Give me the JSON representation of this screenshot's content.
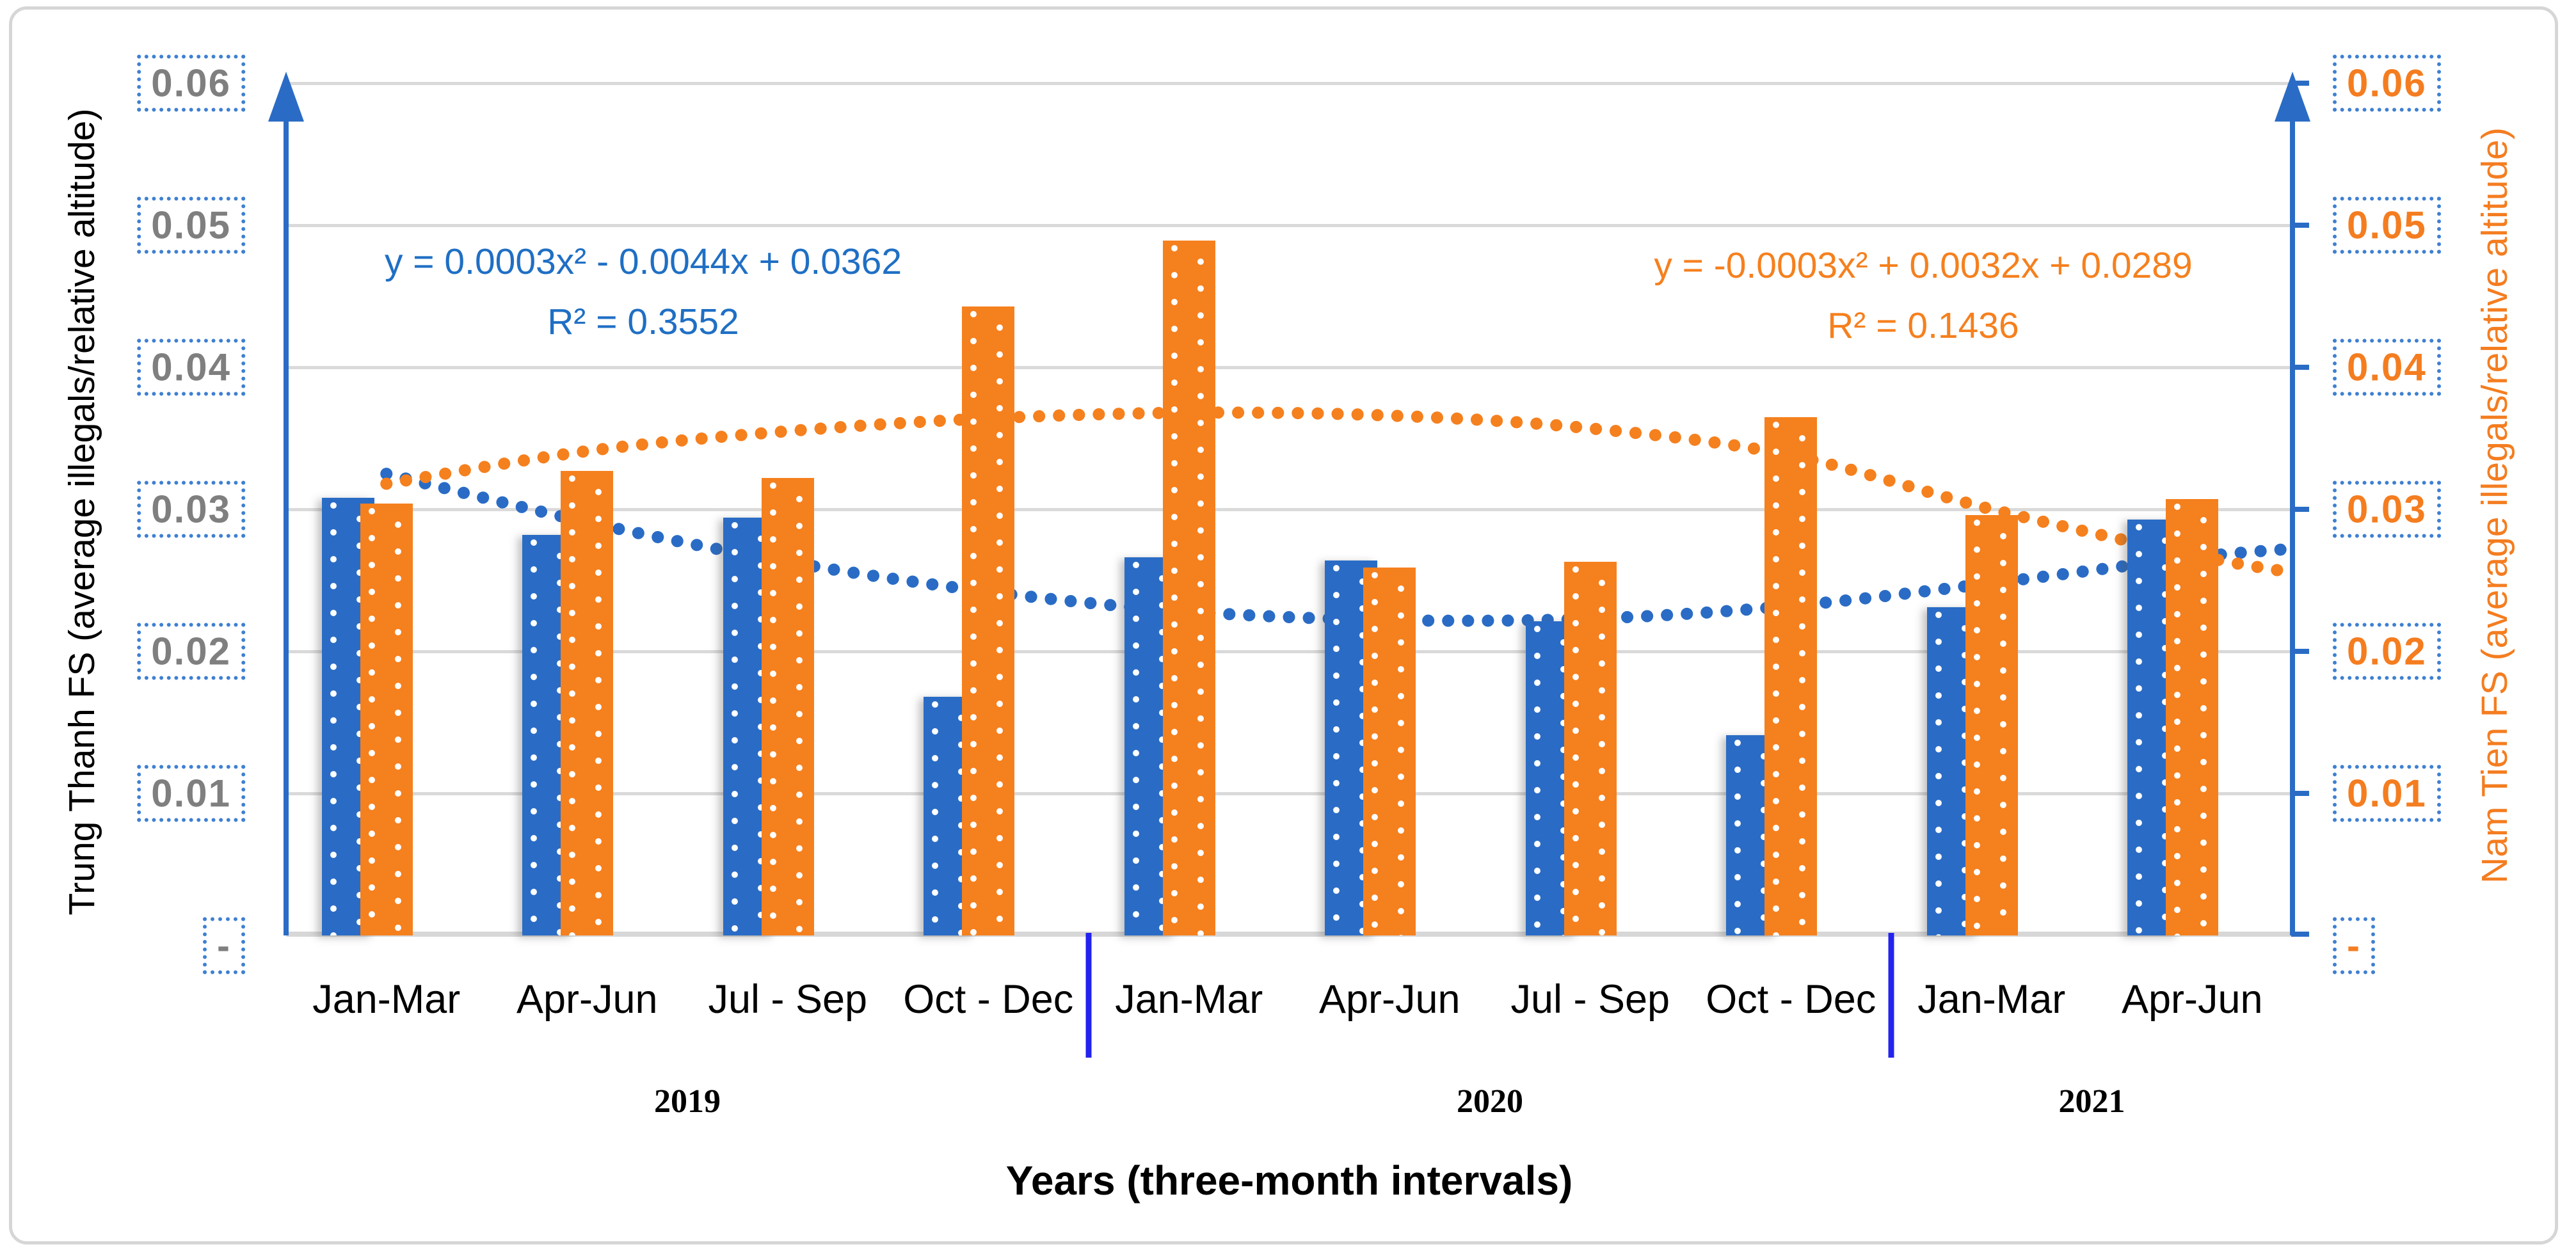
{
  "left_axis": {
    "title": "Trung Thanh FS (average illegals/relative altitude)",
    "tick_labels": [
      "0.06",
      "0.05",
      "0.04",
      "0.03",
      "0.02",
      "0.01",
      "-"
    ],
    "label_color": "#7f7f7f",
    "axis_color": "#2a6cc5"
  },
  "right_axis": {
    "title": "Nam Tien FS (average illegals/relative altitude)",
    "tick_labels": [
      "0.06",
      "0.05",
      "0.04",
      "0.03",
      "0.02",
      "0.01",
      "-"
    ],
    "label_color": "#f47d20",
    "axis_color": "#2a6cc5"
  },
  "x_axis": {
    "title": "Years (three-month intervals)",
    "quarter_labels": [
      "Jan-Mar",
      "Apr-Jun",
      "Jul - Sep",
      "Oct - Dec",
      "Jan-Mar",
      "Apr-Jun",
      "Jul - Sep",
      "Oct - Dec",
      "Jan-Mar",
      "Apr-Jun"
    ],
    "year_groups": [
      {
        "label": "2019",
        "quarters": 4
      },
      {
        "label": "2020",
        "quarters": 4
      },
      {
        "label": "2021",
        "quarters": 2
      }
    ]
  },
  "equations": {
    "trung_thanh": {
      "formula": "y = 0.0003x² - 0.0044x + 0.0362",
      "r_squared": "R² = 0.3552",
      "color": "#1f6fc4"
    },
    "nam_tien": {
      "formula": "y = -0.0003x² + 0.0032x + 0.0289",
      "r_squared": "R² = 0.1436",
      "color": "#f5801e"
    }
  },
  "chart_data": {
    "type": "bar",
    "title": "",
    "xlabel": "Years (three-month intervals)",
    "ylabel_left": "Trung Thanh FS (average illegals/relative altitude)",
    "ylabel_right": "Nam Tien FS (average illegals/relative altitude)",
    "ylim": [
      0,
      0.06
    ],
    "y_ticks": [
      0.01,
      0.02,
      0.03,
      0.04,
      0.05,
      0.06
    ],
    "grid": "horizontal",
    "legend_position": "none",
    "categories": [
      "Jan-Mar 2019",
      "Apr-Jun 2019",
      "Jul - Sep 2019",
      "Oct - Dec 2019",
      "Jan-Mar 2020",
      "Apr-Jun 2020",
      "Jul - Sep 2020",
      "Oct - Dec 2020",
      "Jan-Mar 2021",
      "Apr-Jun 2021"
    ],
    "series": [
      {
        "name": "Trung Thanh FS",
        "axis": "left",
        "color": "#2a6cc5",
        "values": [
          0.0308,
          0.0282,
          0.0294,
          0.0168,
          0.0266,
          0.0264,
          0.0221,
          0.0141,
          0.0231,
          0.0293
        ]
      },
      {
        "name": "Nam Tien FS",
        "axis": "right",
        "color": "#f5801e",
        "values": [
          0.0304,
          0.0327,
          0.0322,
          0.0443,
          0.0489,
          0.0259,
          0.0263,
          0.0365,
          0.0296,
          0.0307
        ]
      }
    ],
    "trendlines": [
      {
        "series": "Trung Thanh FS",
        "type": "polynomial-order-2",
        "style": "dotted",
        "color": "#2a6cc5",
        "equation": "y = 0.0003x² - 0.0044x + 0.0362",
        "r2": 0.3552,
        "sample_x": [
          1,
          2,
          3,
          4,
          5,
          6,
          7,
          8,
          9,
          10,
          10.5
        ],
        "sample_y": [
          0.0325,
          0.0291,
          0.0263,
          0.0242,
          0.0228,
          0.0222,
          0.0223,
          0.0232,
          0.0248,
          0.0266,
          0.0272
        ]
      },
      {
        "series": "Nam Tien FS",
        "type": "polynomial-order-2",
        "style": "dotted",
        "color": "#f5801e",
        "equation": "y = -0.0003x² + 0.0032x + 0.0289",
        "r2": 0.1436,
        "sample_x": [
          1,
          2,
          3,
          4,
          5,
          6,
          7,
          8,
          9,
          10,
          10.5
        ],
        "sample_y": [
          0.0318,
          0.0341,
          0.0355,
          0.0364,
          0.0368,
          0.0366,
          0.0357,
          0.0338,
          0.03,
          0.0268,
          0.0256
        ]
      }
    ]
  }
}
